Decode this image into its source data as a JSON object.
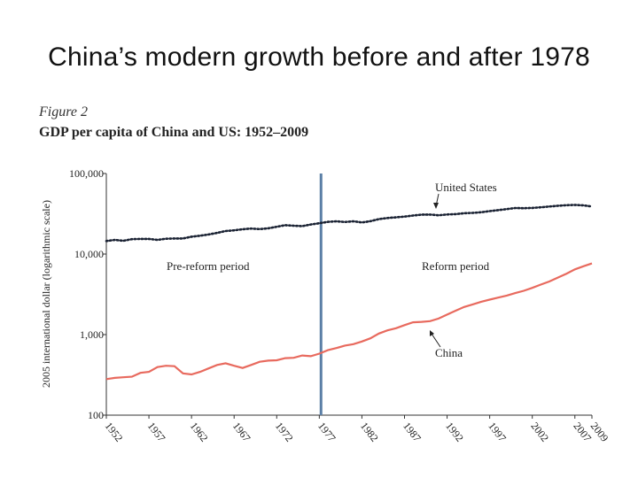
{
  "slide": {
    "title": "China’s modern growth before and after 1978"
  },
  "figure": {
    "label": "Figure 2",
    "title": "GDP per capita of China and US: 1952–2009"
  },
  "chart_data": {
    "type": "line",
    "title": "GDP per capita of China and US: 1952–2009",
    "ylabel": "2005 international dollar (logarithmic scale)",
    "xlabel": "",
    "y_scale": "log",
    "ylim": [
      100,
      100000
    ],
    "xlim": [
      1952,
      2009
    ],
    "y_ticks": [
      100,
      1000,
      10000,
      100000
    ],
    "y_tick_labels": [
      "100",
      "1,000",
      "10,000",
      "100,000"
    ],
    "x_ticks": [
      1952,
      1957,
      1962,
      1967,
      1972,
      1977,
      1982,
      1987,
      1992,
      1997,
      2002,
      2007,
      2009
    ],
    "x_tick_labels": [
      "1952",
      "1957",
      "1962",
      "1967",
      "1972",
      "1977",
      "1982",
      "1987",
      "1992",
      "1997",
      "2002",
      "2007",
      "2009"
    ],
    "grid": false,
    "vertical_marker": {
      "x": 1977.2,
      "color": "#5b7fa6"
    },
    "annotations": [
      {
        "text": "Pre-reform period"
      },
      {
        "text": "Reform period"
      }
    ],
    "series": [
      {
        "name": "United States",
        "style": "dotted",
        "color": "#1a2233",
        "x": [
          1952,
          1953,
          1954,
          1955,
          1956,
          1957,
          1958,
          1959,
          1960,
          1961,
          1962,
          1963,
          1964,
          1965,
          1966,
          1967,
          1968,
          1969,
          1970,
          1971,
          1972,
          1973,
          1974,
          1975,
          1976,
          1977,
          1978,
          1979,
          1980,
          1981,
          1982,
          1983,
          1984,
          1985,
          1986,
          1987,
          1988,
          1989,
          1990,
          1991,
          1992,
          1993,
          1994,
          1995,
          1996,
          1997,
          1998,
          1999,
          2000,
          2001,
          2002,
          2003,
          2004,
          2005,
          2006,
          2007,
          2008,
          2009
        ],
        "values": [
          14500,
          15000,
          14600,
          15300,
          15400,
          15400,
          15000,
          15500,
          15600,
          15600,
          16400,
          16900,
          17500,
          18300,
          19300,
          19700,
          20300,
          20700,
          20400,
          20900,
          21800,
          22800,
          22500,
          22200,
          23300,
          24100,
          25100,
          25500,
          25000,
          25500,
          24700,
          25600,
          27200,
          28000,
          28600,
          29200,
          30100,
          30800,
          30900,
          30300,
          31000,
          31300,
          32100,
          32400,
          33000,
          34100,
          35100,
          36200,
          37300,
          37100,
          37400,
          38000,
          38900,
          39700,
          40400,
          40700,
          40200,
          38900
        ]
      },
      {
        "name": "China",
        "style": "solid",
        "color": "#e86a5e",
        "x": [
          1952,
          1953,
          1954,
          1955,
          1956,
          1957,
          1958,
          1959,
          1960,
          1961,
          1962,
          1963,
          1964,
          1965,
          1966,
          1967,
          1968,
          1969,
          1970,
          1971,
          1972,
          1973,
          1974,
          1975,
          1976,
          1977,
          1978,
          1979,
          1980,
          1981,
          1982,
          1983,
          1984,
          1985,
          1986,
          1987,
          1988,
          1989,
          1990,
          1991,
          1992,
          1993,
          1994,
          1995,
          1996,
          1997,
          1998,
          1999,
          2000,
          2001,
          2002,
          2003,
          2004,
          2005,
          2006,
          2007,
          2008,
          2009
        ],
        "values": [
          280,
          290,
          295,
          300,
          335,
          345,
          395,
          410,
          405,
          330,
          320,
          345,
          380,
          420,
          440,
          410,
          385,
          420,
          460,
          475,
          480,
          510,
          515,
          550,
          540,
          580,
          640,
          680,
          730,
          760,
          820,
          900,
          1030,
          1130,
          1200,
          1310,
          1420,
          1440,
          1470,
          1580,
          1770,
          1980,
          2200,
          2370,
          2560,
          2720,
          2880,
          3050,
          3280,
          3500,
          3800,
          4180,
          4560,
          5100,
          5700,
          6450,
          7050,
          7650
        ]
      }
    ]
  }
}
